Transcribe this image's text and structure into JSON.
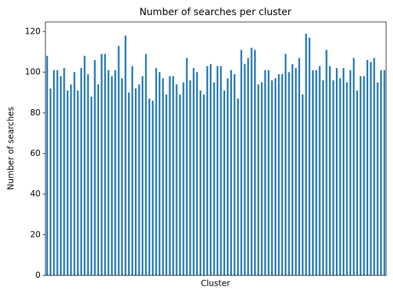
{
  "chart_data": {
    "type": "bar",
    "title": "Number of searches per cluster",
    "xlabel": "Cluster",
    "ylabel": "Number of searches",
    "values": [
      108,
      92,
      101,
      101,
      98,
      102,
      91,
      94,
      100,
      91,
      102,
      108,
      99,
      88,
      106,
      94,
      109,
      109,
      101,
      98,
      101,
      113,
      97,
      118,
      90,
      103,
      92,
      94,
      98,
      109,
      87,
      86,
      102,
      100,
      97,
      89,
      98,
      98,
      94,
      89,
      95,
      107,
      96,
      102,
      100,
      91,
      89,
      103,
      104,
      95,
      103,
      103,
      91,
      97,
      101,
      99,
      87,
      111,
      104,
      107,
      112,
      111,
      94,
      95,
      101,
      101,
      96,
      97,
      99,
      99,
      109,
      100,
      104,
      102,
      107,
      89,
      119,
      117,
      101,
      101,
      103,
      96,
      111,
      103,
      96,
      102,
      97,
      102,
      95,
      101,
      107,
      91,
      98,
      98,
      106,
      105,
      107,
      95,
      101,
      101
    ],
    "color": "#1f77b4",
    "ylim": [
      0,
      124.7
    ],
    "yticks": [
      0,
      20,
      40,
      60,
      80,
      100,
      120
    ],
    "grid": false
  }
}
